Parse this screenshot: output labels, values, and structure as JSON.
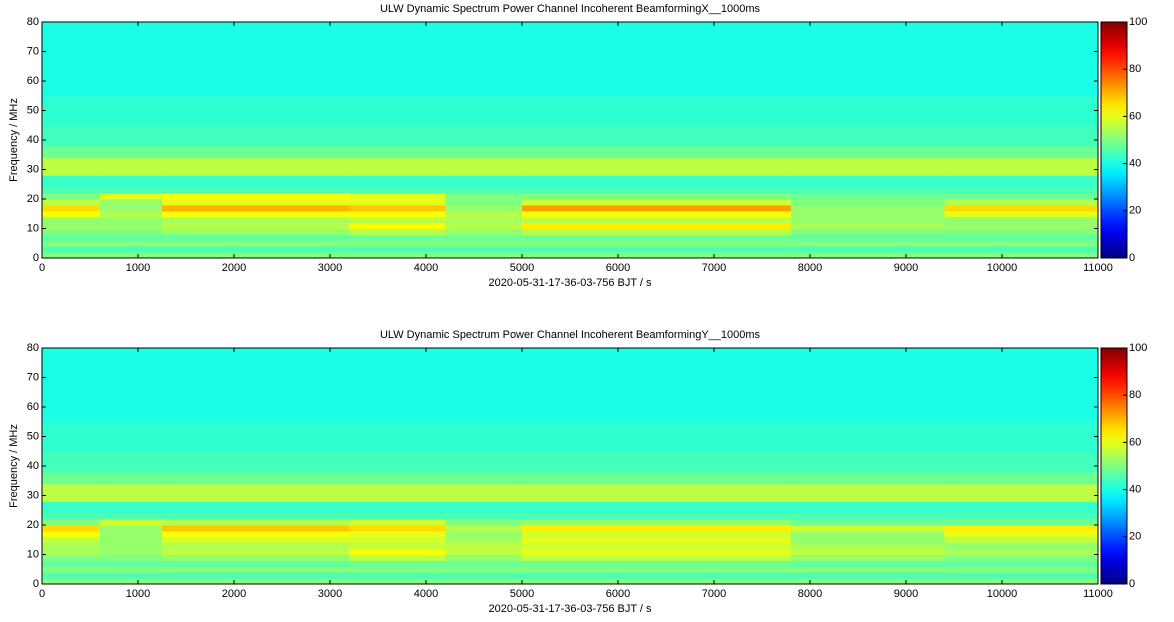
{
  "chart_data": [
    {
      "type": "heatmap",
      "title": "ULW Dynamic Spectrum Power Channel Incoherent BeamformingX__1000ms",
      "xlabel": "2020-05-31-17-36-03-756 BJT / s",
      "ylabel": "Frequency / MHz",
      "colormap": "jet",
      "xlim": [
        0,
        11000
      ],
      "xticks": [
        0,
        1000,
        2000,
        3000,
        4000,
        5000,
        6000,
        7000,
        8000,
        9000,
        10000,
        11000
      ],
      "ylim": [
        0,
        80
      ],
      "yticks": [
        0,
        10,
        20,
        30,
        40,
        50,
        60,
        70,
        80
      ],
      "clim": [
        0,
        100
      ],
      "cticks": [
        0,
        20,
        40,
        60,
        80,
        100
      ],
      "x_edges": [
        0,
        600,
        1250,
        3200,
        4200,
        5000,
        7800,
        9400,
        11000
      ],
      "y_edges": [
        0,
        2,
        4,
        6,
        8,
        10,
        12,
        14,
        16,
        18,
        20,
        22,
        24,
        28,
        34,
        38,
        45,
        55,
        80
      ],
      "z": [
        [
          50,
          50,
          50,
          50,
          50,
          50,
          50,
          50
        ],
        [
          45,
          45,
          45,
          45,
          45,
          45,
          45,
          45
        ],
        [
          50,
          50,
          50,
          50,
          50,
          50,
          50,
          50
        ],
        [
          47,
          47,
          47,
          48,
          48,
          48,
          47,
          47
        ],
        [
          50,
          50,
          52,
          55,
          52,
          55,
          50,
          50
        ],
        [
          52,
          52,
          55,
          62,
          55,
          64,
          54,
          52
        ],
        [
          52,
          52,
          54,
          56,
          54,
          56,
          52,
          52
        ],
        [
          62,
          55,
          62,
          62,
          55,
          62,
          52,
          60
        ],
        [
          66,
          52,
          70,
          68,
          52,
          72,
          52,
          66
        ],
        [
          56,
          52,
          60,
          60,
          50,
          58,
          50,
          55
        ],
        [
          50,
          60,
          62,
          60,
          50,
          50,
          48,
          48
        ],
        [
          45,
          45,
          45,
          45,
          45,
          45,
          45,
          45
        ],
        [
          43,
          43,
          43,
          43,
          43,
          43,
          43,
          43
        ],
        [
          56,
          56,
          56,
          56,
          56,
          56,
          56,
          56
        ],
        [
          48,
          48,
          48,
          48,
          48,
          48,
          48,
          48
        ],
        [
          44,
          44,
          44,
          44,
          44,
          44,
          44,
          44
        ],
        [
          42,
          42,
          42,
          42,
          42,
          42,
          42,
          42
        ],
        [
          40,
          40,
          40,
          40,
          40,
          40,
          40,
          40
        ]
      ]
    },
    {
      "type": "heatmap",
      "title": "ULW Dynamic Spectrum Power Channel Incoherent BeamformingY__1000ms",
      "xlabel": "2020-05-31-17-36-03-756 BJT / s",
      "ylabel": "Frequency / MHz",
      "colormap": "jet",
      "xlim": [
        0,
        11000
      ],
      "xticks": [
        0,
        1000,
        2000,
        3000,
        4000,
        5000,
        6000,
        7000,
        8000,
        9000,
        10000,
        11000
      ],
      "ylim": [
        0,
        80
      ],
      "yticks": [
        0,
        10,
        20,
        30,
        40,
        50,
        60,
        70,
        80
      ],
      "clim": [
        0,
        100
      ],
      "cticks": [
        0,
        20,
        40,
        60,
        80,
        100
      ],
      "x_edges": [
        0,
        600,
        1250,
        3200,
        4200,
        5000,
        7800,
        9400,
        11000
      ],
      "y_edges": [
        0,
        2,
        4,
        6,
        8,
        10,
        12,
        14,
        16,
        18,
        20,
        22,
        24,
        28,
        34,
        38,
        45,
        55,
        80
      ],
      "z": [
        [
          50,
          50,
          50,
          50,
          50,
          50,
          50,
          50
        ],
        [
          45,
          45,
          45,
          45,
          45,
          45,
          45,
          45
        ],
        [
          50,
          50,
          50,
          50,
          50,
          50,
          50,
          50
        ],
        [
          47,
          47,
          47,
          48,
          48,
          48,
          47,
          47
        ],
        [
          50,
          50,
          52,
          56,
          52,
          56,
          52,
          50
        ],
        [
          54,
          52,
          56,
          62,
          56,
          60,
          56,
          54
        ],
        [
          54,
          52,
          55,
          57,
          56,
          58,
          54,
          52
        ],
        [
          56,
          52,
          58,
          58,
          54,
          60,
          52,
          56
        ],
        [
          62,
          52,
          62,
          60,
          52,
          58,
          52,
          60
        ],
        [
          66,
          52,
          68,
          66,
          55,
          64,
          58,
          64
        ],
        [
          50,
          58,
          55,
          58,
          50,
          52,
          48,
          48
        ],
        [
          45,
          45,
          45,
          45,
          45,
          45,
          45,
          45
        ],
        [
          43,
          43,
          43,
          43,
          43,
          43,
          43,
          43
        ],
        [
          56,
          56,
          56,
          56,
          56,
          56,
          56,
          56
        ],
        [
          48,
          48,
          48,
          48,
          48,
          48,
          48,
          48
        ],
        [
          44,
          44,
          44,
          44,
          44,
          44,
          44,
          44
        ],
        [
          42,
          42,
          42,
          42,
          42,
          42,
          42,
          42
        ],
        [
          40,
          40,
          40,
          40,
          40,
          40,
          40,
          40
        ]
      ]
    }
  ]
}
